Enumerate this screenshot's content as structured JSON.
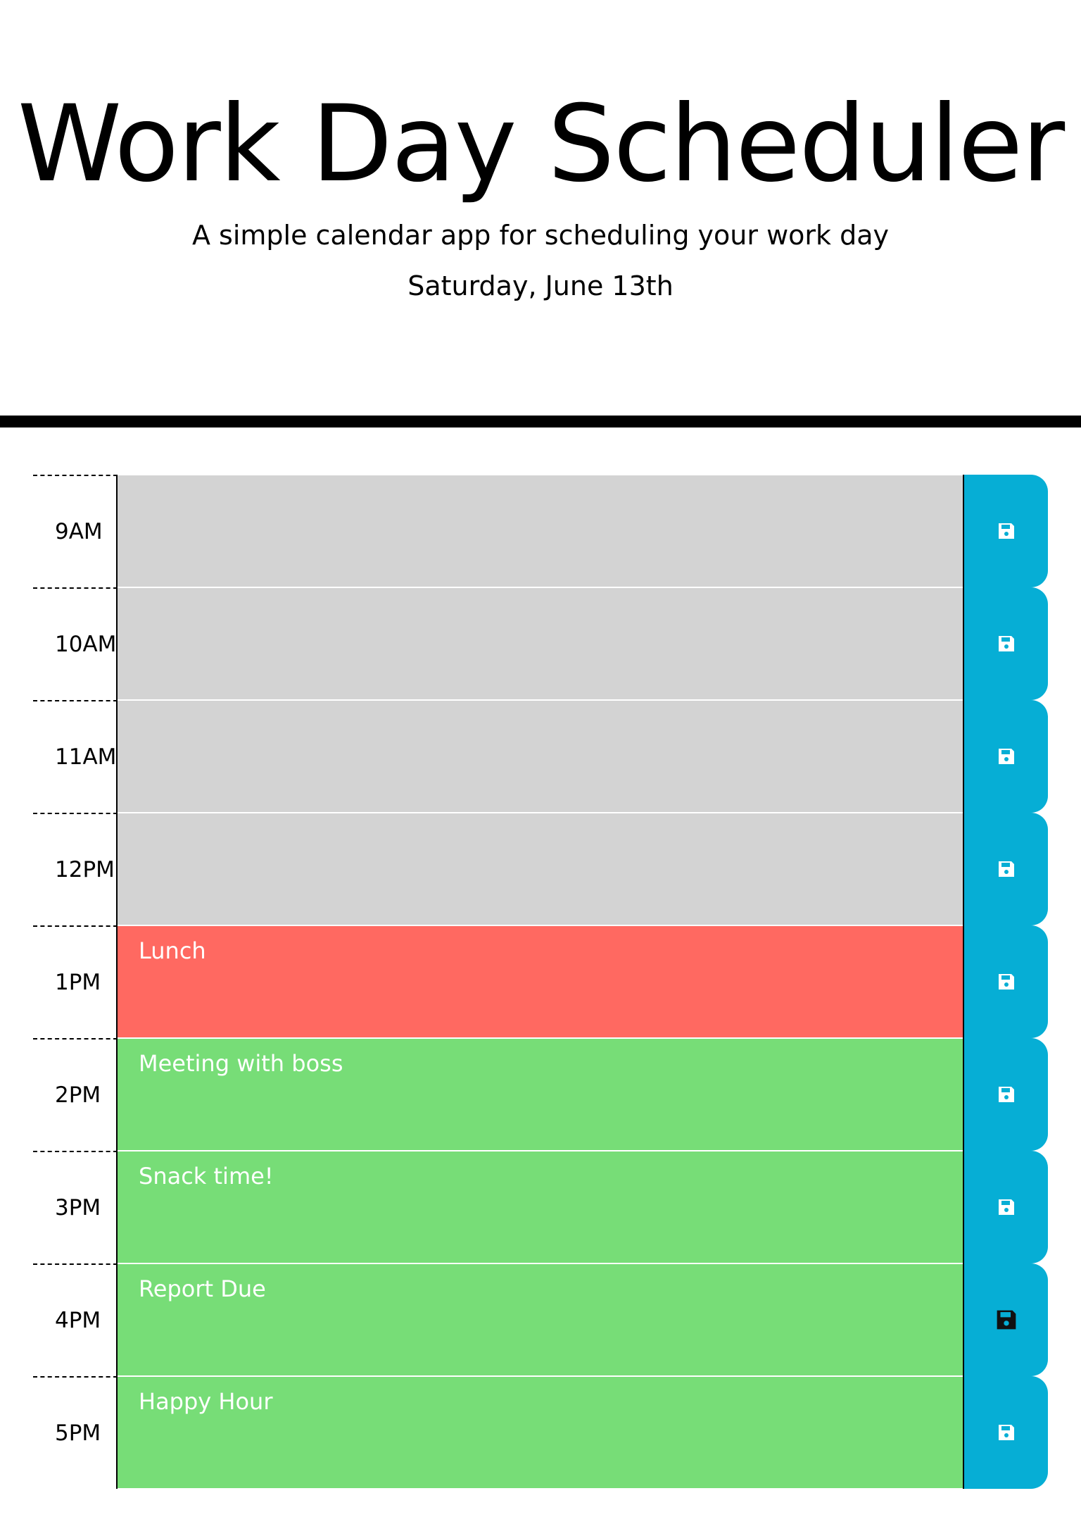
{
  "header": {
    "title": "Work Day Scheduler",
    "lead": "A simple calendar app for scheduling your work day",
    "current_day": "Saturday, June 13th"
  },
  "colors": {
    "past": "#d3d3d3",
    "present": "#ff6961",
    "future": "#77dd77",
    "save_button": "#06aed5"
  },
  "time_blocks": [
    {
      "hour": "9AM",
      "text": "",
      "state": "past",
      "icon": "floppy-disk-icon"
    },
    {
      "hour": "10AM",
      "text": "",
      "state": "past",
      "icon": "floppy-disk-icon"
    },
    {
      "hour": "11AM",
      "text": "",
      "state": "past",
      "icon": "floppy-disk-icon"
    },
    {
      "hour": "12PM",
      "text": "",
      "state": "past",
      "icon": "floppy-disk-icon"
    },
    {
      "hour": "1PM",
      "text": "Lunch",
      "state": "present",
      "icon": "floppy-disk-icon"
    },
    {
      "hour": "2PM",
      "text": "Meeting with boss",
      "state": "future",
      "icon": "floppy-disk-icon"
    },
    {
      "hour": "3PM",
      "text": "Snack time!",
      "state": "future",
      "icon": "floppy-disk-icon"
    },
    {
      "hour": "4PM",
      "text": "Report Due",
      "state": "future",
      "icon": "floppy-disk-icon"
    },
    {
      "hour": "5PM",
      "text": "Happy Hour",
      "state": "future",
      "icon": "floppy-disk-icon"
    }
  ]
}
